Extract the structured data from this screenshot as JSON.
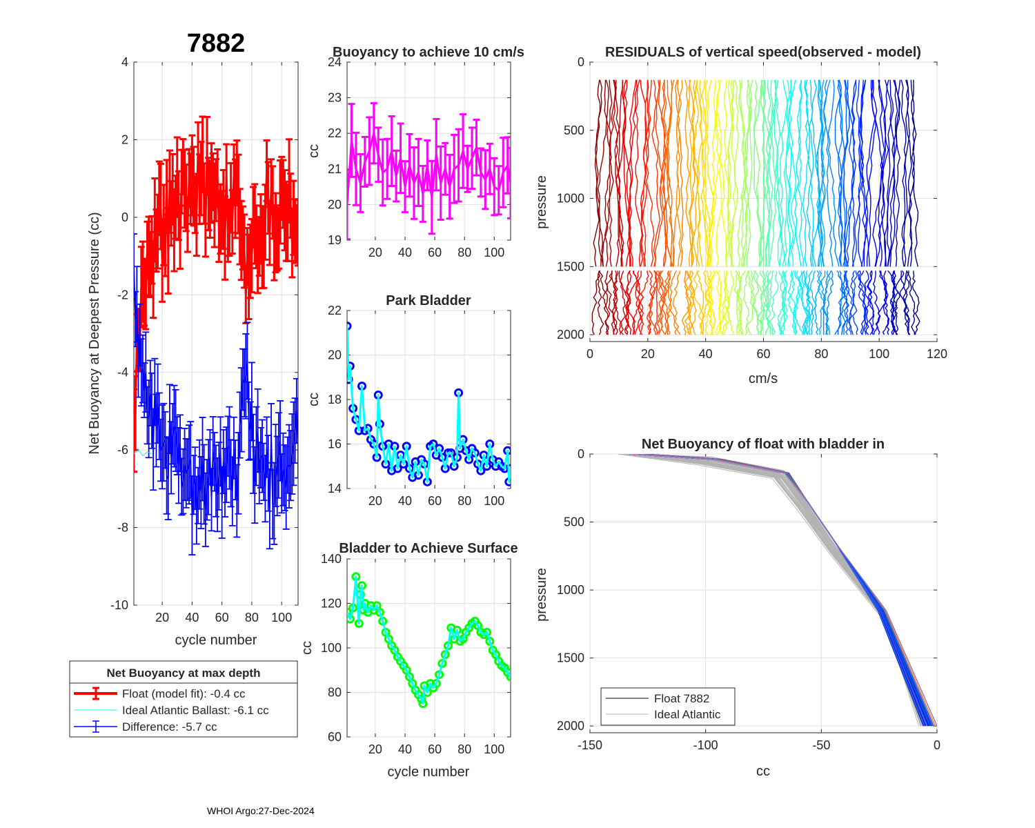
{
  "figure": {
    "main_title": "7882",
    "footer": "WHOI Argo:27-Dec-2024"
  },
  "legend_main": {
    "title": "Net Buoyancy at max depth",
    "entries": [
      {
        "label": "Float (model fit):  -0.4 cc",
        "color": "#ff0000"
      },
      {
        "label": "Ideal Atlantic Ballast:  -6.1 cc",
        "color": "#00ffff"
      },
      {
        "label": "Difference:  -5.7 cc",
        "color": "#0000ff"
      }
    ]
  },
  "legend_nb": {
    "entries": [
      {
        "label": "Float 7882",
        "color": "#000000"
      },
      {
        "label": "Ideal Atlantic",
        "color": "#b3b3b3"
      }
    ]
  },
  "chart_data": [
    {
      "id": "net_buoyancy",
      "type": "line",
      "title": "",
      "xlabel": "cycle number",
      "ylabel": "Net Buoyancy at Deepest Pressure (cc)",
      "xlim": [
        1,
        111
      ],
      "ylim": [
        -10,
        4
      ],
      "xticks": [
        20,
        40,
        60,
        80,
        100
      ],
      "yticks": [
        -10,
        -8,
        -6,
        -4,
        -2,
        0,
        2,
        4
      ],
      "grid": true,
      "series": [
        {
          "name": "Float (model fit)",
          "color": "#ff0000",
          "x": [
            1,
            6,
            11,
            16,
            21,
            26,
            31,
            36,
            41,
            46,
            51,
            56,
            61,
            66,
            71,
            76,
            81,
            86,
            91,
            96,
            101,
            106,
            111
          ],
          "y": [
            -5.5,
            -1.8,
            -1.0,
            -0.6,
            -0.2,
            0.1,
            0.3,
            0.5,
            0.8,
            1.0,
            0.6,
            0.7,
            0.2,
            0.5,
            0.6,
            -2.0,
            0.0,
            -0.3,
            0.5,
            -0.4,
            0.6,
            0.3,
            -0.4
          ],
          "err": 1.0
        },
        {
          "name": "Ideal Atlantic Ballast",
          "color": "#00ffff",
          "x": [
            1,
            4,
            7,
            10,
            13
          ],
          "y": [
            -6.1,
            -6.0,
            -6.15,
            -6.05,
            -6.1
          ]
        },
        {
          "name": "Difference",
          "color": "#0000ff",
          "x": [
            1,
            6,
            11,
            16,
            21,
            26,
            31,
            36,
            41,
            46,
            51,
            56,
            61,
            66,
            71,
            76,
            81,
            86,
            91,
            96,
            101,
            106,
            111
          ],
          "y": [
            -1.2,
            -4.0,
            -5.2,
            -5.5,
            -5.8,
            -6.2,
            -6.4,
            -6.6,
            -6.9,
            -7.1,
            -6.7,
            -6.8,
            -6.3,
            -6.6,
            -6.6,
            -4.1,
            -6.1,
            -6.2,
            -6.6,
            -6.4,
            -6.5,
            -6.4,
            -5.7
          ],
          "err": 1.0
        }
      ]
    },
    {
      "id": "buoyancy_10cms",
      "type": "line",
      "title": "Buoyancy to achieve 10 cm/s",
      "xlabel": "",
      "ylabel": "cc",
      "xlim": [
        1,
        111
      ],
      "ylim": [
        19,
        24
      ],
      "xticks": [
        20,
        40,
        60,
        80,
        100
      ],
      "yticks": [
        19,
        20,
        21,
        22,
        23,
        24
      ],
      "grid": true,
      "series": [
        {
          "name": "Buoyancy",
          "color": "#ff00ff",
          "x": [
            1,
            4,
            7,
            10,
            13,
            16,
            19,
            22,
            25,
            28,
            31,
            34,
            37,
            40,
            43,
            46,
            49,
            52,
            55,
            58,
            61,
            64,
            67,
            70,
            73,
            76,
            79,
            82,
            85,
            88,
            91,
            94,
            97,
            100,
            103,
            106,
            109,
            111
          ],
          "y": [
            20.0,
            21.8,
            21.0,
            20.6,
            21.2,
            21.5,
            22.0,
            21.4,
            20.9,
            21.0,
            21.5,
            20.8,
            21.3,
            20.5,
            21.1,
            20.6,
            20.9,
            20.3,
            21.1,
            20.2,
            21.4,
            20.6,
            21.0,
            20.5,
            21.0,
            21.1,
            21.5,
            21.0,
            21.3,
            21.6,
            20.9,
            20.7,
            21.0,
            20.5,
            20.4,
            20.9,
            21.1,
            20.6
          ],
          "err": 0.8
        }
      ]
    },
    {
      "id": "park_bladder",
      "type": "line",
      "title": "Park Bladder",
      "xlabel": "",
      "ylabel": "cc",
      "xlim": [
        1,
        111
      ],
      "ylim": [
        14,
        22
      ],
      "xticks": [
        20,
        40,
        60,
        80,
        100
      ],
      "yticks": [
        14,
        16,
        18,
        20,
        22
      ],
      "grid": true,
      "series": [
        {
          "name": "Park Bladder",
          "color": "#00ffff",
          "marker_color": "#0000ff",
          "x": [
            1,
            2,
            3,
            5,
            7,
            9,
            11,
            13,
            15,
            17,
            19,
            21,
            22,
            23,
            25,
            27,
            29,
            31,
            33,
            35,
            37,
            39,
            41,
            43,
            45,
            47,
            49,
            51,
            53,
            55,
            57,
            59,
            61,
            63,
            65,
            67,
            69,
            71,
            73,
            75,
            76,
            77,
            79,
            81,
            83,
            85,
            87,
            89,
            91,
            93,
            95,
            97,
            99,
            101,
            103,
            105,
            107,
            109,
            110,
            111
          ],
          "y": [
            21.3,
            18.9,
            19.5,
            17.6,
            17.1,
            16.6,
            18.6,
            16.6,
            16.7,
            16.2,
            16.0,
            15.4,
            18.2,
            16.9,
            15.9,
            15.1,
            16.0,
            14.8,
            15.9,
            14.9,
            15.5,
            15.1,
            15.9,
            14.9,
            14.5,
            15.2,
            14.6,
            15.3,
            15.1,
            14.3,
            15.9,
            16.0,
            15.5,
            15.8,
            15.4,
            14.9,
            15.6,
            15.6,
            15.0,
            15.4,
            18.3,
            15.8,
            16.2,
            15.7,
            15.3,
            15.8,
            15.6,
            15.1,
            14.8,
            15.5,
            15.0,
            16.0,
            15.3,
            15.0,
            15.2,
            15.0,
            14.9,
            15.7,
            14.3,
            14.9
          ]
        }
      ]
    },
    {
      "id": "bladder_surface",
      "type": "line",
      "title": "Bladder to Achieve Surface",
      "xlabel": "cycle number",
      "ylabel": "cc",
      "xlim": [
        1,
        111
      ],
      "ylim": [
        60,
        140
      ],
      "xticks": [
        20,
        40,
        60,
        80,
        100
      ],
      "yticks": [
        60,
        80,
        100,
        120,
        140
      ],
      "grid": true,
      "series": [
        {
          "name": "Bladder Surface",
          "color": "#00ffff",
          "marker_color": "#00ff00",
          "x": [
            1,
            3,
            5,
            7,
            9,
            10,
            11,
            12,
            13,
            15,
            17,
            19,
            21,
            23,
            25,
            27,
            29,
            31,
            33,
            35,
            37,
            39,
            41,
            43,
            45,
            47,
            49,
            51,
            52,
            53,
            55,
            57,
            59,
            61,
            63,
            65,
            67,
            69,
            71,
            73,
            75,
            77,
            79,
            81,
            83,
            85,
            87,
            89,
            91,
            93,
            95,
            97,
            99,
            101,
            103,
            105,
            107,
            109,
            111
          ],
          "y": [
            116,
            113,
            118,
            132,
            111,
            124,
            128,
            117,
            120,
            116,
            119,
            117,
            119,
            116,
            112,
            107,
            104,
            101,
            99,
            96,
            94,
            92,
            90,
            87,
            84,
            81,
            79,
            77,
            75,
            83,
            80,
            84,
            82,
            84,
            88,
            93,
            97,
            101,
            109,
            104,
            108,
            103,
            104,
            107,
            109,
            111,
            112,
            110,
            107,
            106,
            107,
            103,
            99,
            97,
            94,
            92,
            91,
            89,
            87
          ]
        }
      ]
    },
    {
      "id": "residuals",
      "type": "line",
      "title": "RESIDUALS of vertical speed(observed - model)",
      "xlabel": "cm/s",
      "ylabel": "pressure",
      "xlim": [
        0,
        120
      ],
      "ylim": [
        0,
        2050
      ],
      "y_reversed": true,
      "xticks": [
        0,
        20,
        40,
        60,
        80,
        100,
        120
      ],
      "yticks": [
        0,
        500,
        1000,
        1500,
        2000
      ],
      "grid": true,
      "profiles": 110,
      "offset_start": 3,
      "offset_end": 112,
      "upper_pressure": [
        130,
        1500
      ],
      "lower_pressure": [
        1530,
        2000
      ],
      "colormap": "jet"
    },
    {
      "id": "net_buoyancy_bladder",
      "type": "line",
      "title": "Net Buoyancy of float with bladder in",
      "xlabel": "cc",
      "ylabel": "pressure",
      "xlim": [
        -150,
        0
      ],
      "ylim": [
        0,
        2050
      ],
      "y_reversed": true,
      "xticks": [
        -150,
        -100,
        -50,
        0
      ],
      "yticks": [
        0,
        500,
        1000,
        1500,
        2000
      ],
      "grid": true,
      "series": [
        {
          "name": "Ideal Atlantic",
          "color": "#b3b3b3",
          "x": [
            -133,
            -100,
            -68,
            -58,
            -45,
            -22,
            -2
          ],
          "y": [
            0,
            50,
            150,
            380,
            700,
            1200,
            2000
          ]
        },
        {
          "name": "Float 7882",
          "color": "#000000",
          "x": [
            -130,
            -95,
            -65,
            -56,
            -44,
            -22,
            0
          ],
          "y": [
            0,
            40,
            140,
            350,
            650,
            1150,
            2000
          ]
        }
      ]
    }
  ]
}
